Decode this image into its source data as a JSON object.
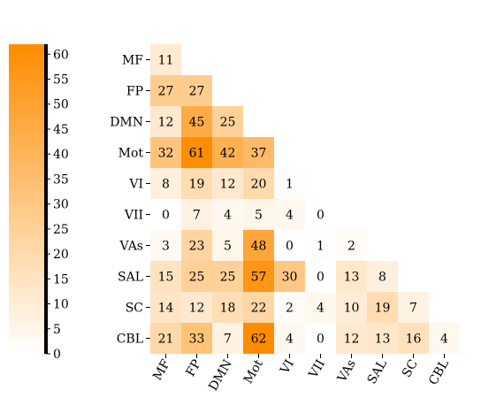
{
  "chart_data": {
    "type": "heatmap",
    "title": "",
    "xlabel": "",
    "ylabel": "",
    "triangular": "lower",
    "categories": [
      "MF",
      "FP",
      "DMN",
      "Mot",
      "VI",
      "VII",
      "VAs",
      "SAL",
      "SC",
      "CBL"
    ],
    "values": [
      [
        11
      ],
      [
        27,
        27
      ],
      [
        12,
        45,
        25
      ],
      [
        32,
        61,
        42,
        37
      ],
      [
        8,
        19,
        12,
        20,
        1
      ],
      [
        0,
        7,
        4,
        5,
        4,
        0
      ],
      [
        3,
        23,
        5,
        48,
        0,
        1,
        2
      ],
      [
        15,
        25,
        25,
        57,
        30,
        0,
        13,
        8
      ],
      [
        14,
        12,
        18,
        22,
        2,
        4,
        10,
        19,
        7
      ],
      [
        21,
        33,
        7,
        62,
        4,
        0,
        12,
        13,
        16,
        4
      ]
    ],
    "colorbar": {
      "min": 0,
      "max": 62,
      "ticks": [
        "0",
        "5",
        "10",
        "15",
        "20",
        "25",
        "30",
        "35",
        "40",
        "45",
        "50",
        "55",
        "60"
      ],
      "color_low": "#ffffff",
      "color_high": "#ff8c00"
    }
  }
}
